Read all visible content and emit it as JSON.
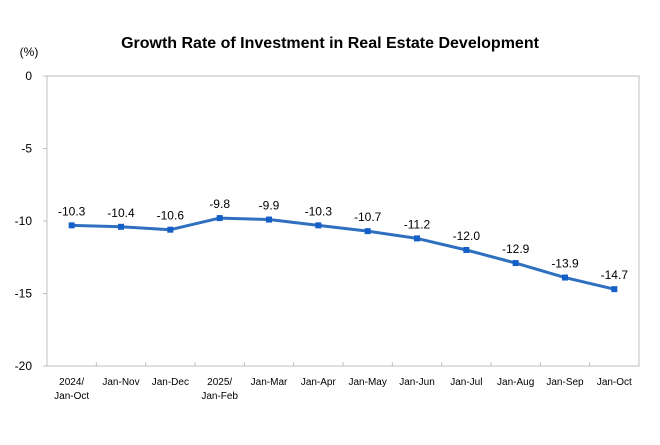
{
  "chart_data": {
    "type": "line",
    "title": "Growth Rate of Investment in Real Estate Development",
    "ylabel": "(%)",
    "xlabel": "",
    "ylim": [
      -20,
      0
    ],
    "yticks": [
      0,
      -5,
      -10,
      -15,
      -20
    ],
    "grid": false,
    "categories": [
      "2024/\nJan-Oct",
      "Jan-Nov",
      "Jan-Dec",
      "2025/\nJan-Feb",
      "Jan-Mar",
      "Jan-Apr",
      "Jan-May",
      "Jan-Jun",
      "Jan-Jul",
      "Jan-Aug",
      "Jan-Sep",
      "Jan-Oct"
    ],
    "series": [
      {
        "values": [
          -10.3,
          -10.4,
          -10.6,
          -9.8,
          -9.9,
          -10.3,
          -10.7,
          -11.2,
          -12.0,
          -12.9,
          -13.9,
          -14.7
        ],
        "color": "#2e6fc0",
        "marker_color": "#1560c8"
      }
    ],
    "data_labels": [
      "-10.3",
      "-10.4",
      "-10.6",
      "-9.8",
      "-9.9",
      "-10.3",
      "-10.7",
      "-11.2",
      "-12.0",
      "-12.9",
      "-13.9",
      "-14.7"
    ]
  }
}
